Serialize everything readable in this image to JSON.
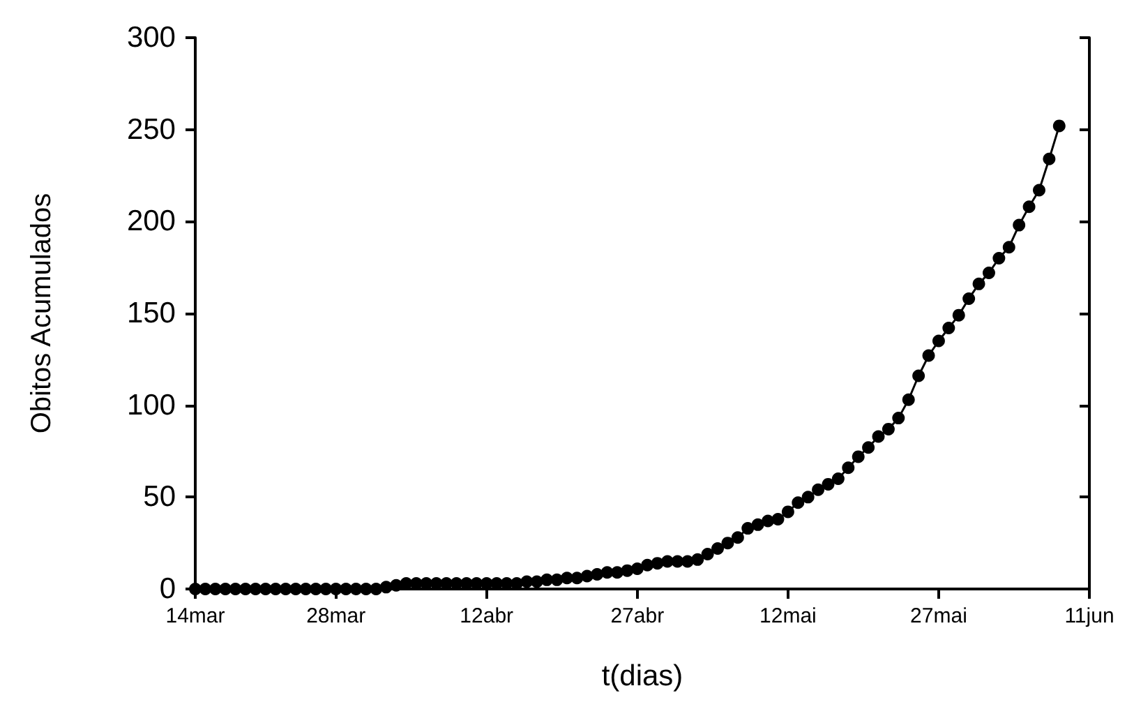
{
  "chart_data": {
    "type": "line",
    "xlabel": "t(dias)",
    "ylabel": "Obitos Acumulados",
    "x": [
      "--03-14",
      "--03-15",
      "--03-16",
      "--03-17",
      "--03-18",
      "--03-19",
      "--03-20",
      "--03-21",
      "--03-22",
      "--03-23",
      "--03-24",
      "--03-25",
      "--03-26",
      "--03-27",
      "--03-28",
      "--03-29",
      "--03-30",
      "--03-31",
      "--04-01",
      "--04-02",
      "--04-03",
      "--04-04",
      "--04-05",
      "--04-06",
      "--04-07",
      "--04-08",
      "--04-09",
      "--04-10",
      "--04-11",
      "--04-12",
      "--04-13",
      "--04-14",
      "--04-15",
      "--04-16",
      "--04-17",
      "--04-18",
      "--04-19",
      "--04-20",
      "--04-21",
      "--04-22",
      "--04-23",
      "--04-24",
      "--04-25",
      "--04-26",
      "--04-27",
      "--04-28",
      "--04-29",
      "--04-30",
      "--05-01",
      "--05-02",
      "--05-03",
      "--05-04",
      "--05-05",
      "--05-06",
      "--05-07",
      "--05-08",
      "--05-09",
      "--05-10",
      "--05-11",
      "--05-12",
      "--05-13",
      "--05-14",
      "--05-15",
      "--05-16",
      "--05-17",
      "--05-18",
      "--05-19",
      "--05-20",
      "--05-21",
      "--05-22",
      "--05-23",
      "--05-24",
      "--05-25",
      "--05-26",
      "--05-27",
      "--05-28",
      "--05-29",
      "--05-30",
      "--05-31",
      "--06-01",
      "--06-02",
      "--06-03",
      "--06-04",
      "--06-05",
      "--06-06",
      "--06-07",
      "--06-08"
    ],
    "series": [
      {
        "color": "#000000",
        "values": [
          0,
          0,
          0,
          0,
          0,
          0,
          0,
          0,
          0,
          0,
          0,
          0,
          0,
          0,
          0,
          0,
          0,
          0,
          0,
          1,
          2,
          3,
          3,
          3,
          3,
          3,
          3,
          3,
          3,
          3,
          3,
          3,
          3,
          4,
          4,
          5,
          5,
          6,
          6,
          7,
          8,
          9,
          9,
          10,
          11,
          13,
          14,
          15,
          15,
          15,
          16,
          19,
          22,
          25,
          28,
          33,
          35,
          37,
          38,
          42,
          47,
          50,
          54,
          57,
          60,
          66,
          72,
          77,
          83,
          87,
          93,
          103,
          116,
          127,
          135,
          142,
          149,
          158,
          166,
          172,
          180,
          186,
          198,
          208,
          217,
          234,
          252
        ]
      }
    ],
    "xlim": [
      "--03-14",
      "--06-11"
    ],
    "xticks": [
      {
        "value": "--03-14",
        "label": "14mar"
      },
      {
        "value": "--03-28",
        "label": "28mar"
      },
      {
        "value": "--04-12",
        "label": "12abr"
      },
      {
        "value": "--04-27",
        "label": "27abr"
      },
      {
        "value": "--05-12",
        "label": "12mai"
      },
      {
        "value": "--05-27",
        "label": "27mai"
      },
      {
        "value": "--06-11",
        "label": "11jun"
      }
    ],
    "ylim": [
      0,
      300
    ],
    "yticks": [
      0,
      50,
      100,
      150,
      200,
      250,
      300
    ],
    "grid": false,
    "marker": "circle",
    "line_style": "solid"
  }
}
